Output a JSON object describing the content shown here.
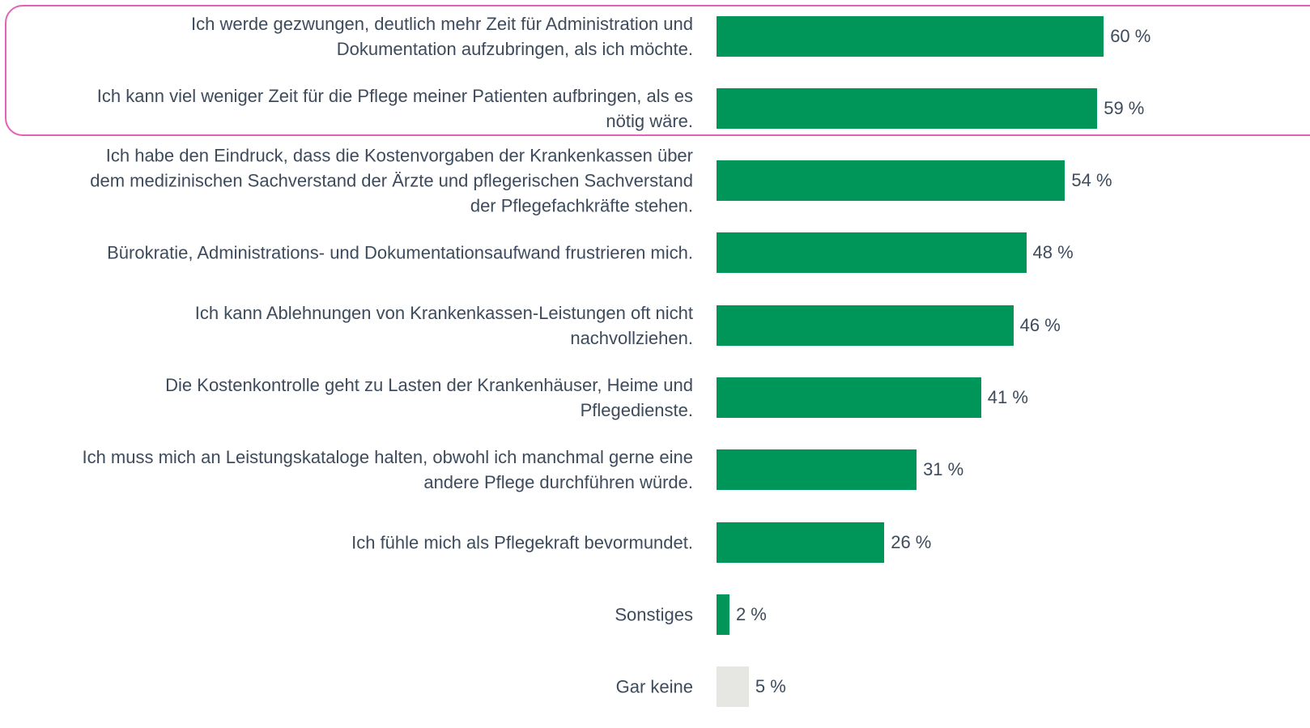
{
  "chart_data": {
    "type": "bar",
    "orientation": "horizontal",
    "categories": [
      "Ich werde gezwungen, deutlich mehr Zeit für Administration und\nDokumentation aufzubringen, als ich möchte.",
      "Ich kann viel weniger Zeit für die Pflege meiner Patienten aufbringen, als es\nnötig wäre.",
      "Ich habe den Eindruck, dass die Kostenvorgaben der Krankenkassen über\ndem medizinischen Sachverstand der Ärzte und pflegerischen Sachverstand\nder Pflegefachkräfte stehen.",
      "Bürokratie, Administrations- und Dokumentationsaufwand frustrieren mich.",
      "Ich kann Ablehnungen von Krankenkassen-Leistungen oft nicht\nnachvollziehen.",
      "Die Kostenkontrolle geht zu Lasten der Krankenhäuser, Heime und\nPflegedienste.",
      "Ich muss mich an Leistungskataloge halten, obwohl ich manchmal gerne eine\nandere Pflege durchführen würde.",
      "Ich fühle mich als Pflegekraft bevormundet.",
      "Sonstiges",
      "Gar keine"
    ],
    "values": [
      60,
      59,
      54,
      48,
      46,
      41,
      31,
      26,
      2,
      5
    ],
    "value_labels": [
      "60 %",
      "59 %",
      "54 %",
      "48 %",
      "46 %",
      "41 %",
      "31 %",
      "26 %",
      "2 %",
      "5 %"
    ],
    "colors": [
      "#00965a",
      "#00965a",
      "#00965a",
      "#00965a",
      "#00965a",
      "#00965a",
      "#00965a",
      "#00965a",
      "#00965a",
      "#e6e6e2"
    ]
  }
}
